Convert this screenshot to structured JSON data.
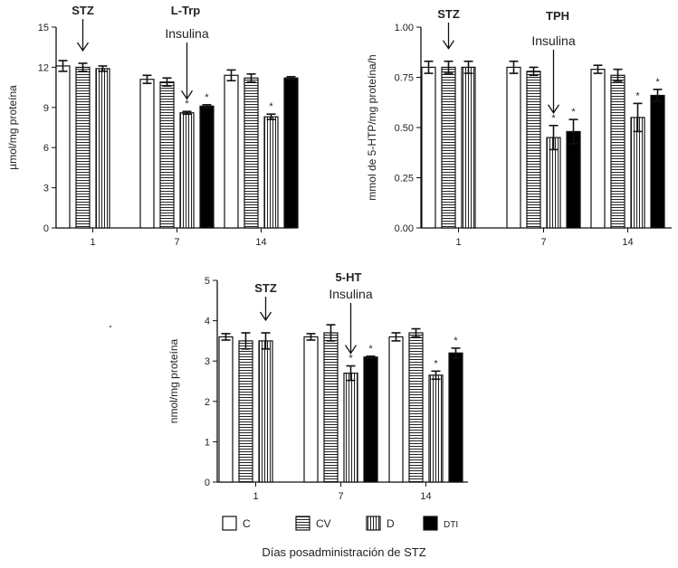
{
  "figure": {
    "legend": [
      {
        "label": "C",
        "pattern": "open"
      },
      {
        "label": "CV",
        "pattern": "hstripe"
      },
      {
        "label": "D",
        "pattern": "vstripe"
      },
      {
        "label": "DTI",
        "pattern": "solid"
      }
    ],
    "xlabel": "Días posadministración de STZ",
    "colors": {
      "stroke": "#111111",
      "fill_solid": "#000000",
      "fill_open": "#ffffff"
    }
  },
  "chart_data": [
    {
      "type": "bar",
      "title": "L-Trp",
      "ylabel": "µmol/mg proteína",
      "ylim": [
        0,
        15
      ],
      "yticks": [
        "0",
        "3",
        "6",
        "9",
        "12",
        "15"
      ],
      "categories": [
        "1",
        "7",
        "14"
      ],
      "series": [
        {
          "name": "C",
          "values": [
            12.1,
            11.1,
            11.4
          ],
          "errors": [
            0.4,
            0.3,
            0.4
          ]
        },
        {
          "name": "CV",
          "values": [
            12.0,
            10.9,
            11.2
          ],
          "errors": [
            0.3,
            0.3,
            0.3
          ]
        },
        {
          "name": "D",
          "values": [
            11.9,
            8.6,
            8.3
          ],
          "errors": [
            0.2,
            0.1,
            0.2
          ]
        },
        {
          "name": "DTI",
          "values": [
            null,
            9.1,
            11.2
          ],
          "errors": [
            0,
            0.1,
            0.1
          ]
        }
      ],
      "significance": [
        {
          "series": "D",
          "category": "7",
          "mark": "*"
        },
        {
          "series": "DTI",
          "category": "7",
          "mark": "*"
        },
        {
          "series": "D",
          "category": "14",
          "mark": "*"
        }
      ],
      "annotations": [
        {
          "label": "STZ",
          "category": "1",
          "series": "CV"
        },
        {
          "label": "Insulina",
          "category": "7",
          "series": "D"
        }
      ]
    },
    {
      "type": "bar",
      "title": "TPH",
      "ylabel": "mmol de 5-HTP/mg proteína/h",
      "ylim": [
        0,
        1.0
      ],
      "yticks": [
        "0.00",
        "0.25",
        "0.50",
        "0.75",
        "1.00"
      ],
      "categories": [
        "1",
        "7",
        "14"
      ],
      "series": [
        {
          "name": "C",
          "values": [
            0.8,
            0.8,
            0.79
          ],
          "errors": [
            0.03,
            0.03,
            0.02
          ]
        },
        {
          "name": "CV",
          "values": [
            0.8,
            0.78,
            0.76
          ],
          "errors": [
            0.03,
            0.02,
            0.03
          ]
        },
        {
          "name": "D",
          "values": [
            0.8,
            0.45,
            0.55
          ],
          "errors": [
            0.03,
            0.06,
            0.07
          ]
        },
        {
          "name": "DTI",
          "values": [
            null,
            0.48,
            0.66
          ],
          "errors": [
            0,
            0.06,
            0.03
          ]
        }
      ],
      "significance": [
        {
          "series": "D",
          "category": "7",
          "mark": "*"
        },
        {
          "series": "DTI",
          "category": "7",
          "mark": "*"
        },
        {
          "series": "D",
          "category": "14",
          "mark": "*"
        },
        {
          "series": "DTI",
          "category": "14",
          "mark": "*"
        }
      ],
      "annotations": [
        {
          "label": "STZ",
          "category": "1",
          "series": "CV"
        },
        {
          "label": "Insulina",
          "category": "7",
          "series": "D"
        }
      ]
    },
    {
      "type": "bar",
      "title": "5-HT",
      "ylabel": "nmol/mg proteína",
      "ylim": [
        0,
        5
      ],
      "yticks": [
        "0",
        "1",
        "2",
        "3",
        "4",
        "5"
      ],
      "categories": [
        "1",
        "7",
        "14"
      ],
      "series": [
        {
          "name": "C",
          "values": [
            3.6,
            3.6,
            3.6
          ],
          "errors": [
            0.08,
            0.08,
            0.1
          ]
        },
        {
          "name": "CV",
          "values": [
            3.5,
            3.7,
            3.7
          ],
          "errors": [
            0.2,
            0.2,
            0.1
          ]
        },
        {
          "name": "D",
          "values": [
            3.5,
            2.7,
            2.65
          ],
          "errors": [
            0.2,
            0.18,
            0.1
          ]
        },
        {
          "name": "DTI",
          "values": [
            null,
            3.1,
            3.2
          ],
          "errors": [
            0,
            0.02,
            0.12
          ]
        }
      ],
      "significance": [
        {
          "series": "D",
          "category": "7",
          "mark": "*"
        },
        {
          "series": "DTI",
          "category": "7",
          "mark": "*"
        },
        {
          "series": "D",
          "category": "14",
          "mark": "*"
        },
        {
          "series": "DTI",
          "category": "14",
          "mark": "*"
        }
      ],
      "annotations": [
        {
          "label": "STZ",
          "category": "1",
          "series": "D"
        },
        {
          "label": "Insulina",
          "category": "7",
          "series": "D"
        }
      ]
    }
  ]
}
